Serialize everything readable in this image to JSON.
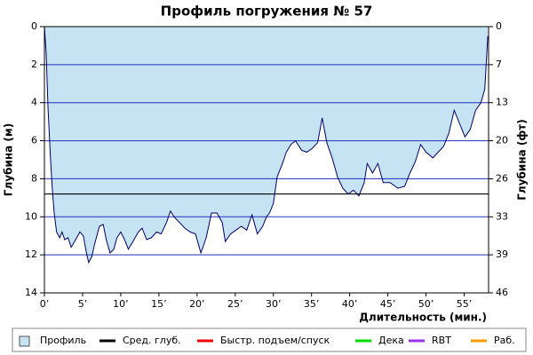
{
  "chart_data": {
    "type": "area",
    "title": "Профиль погружения № 57",
    "y_label": "Глубина (м)",
    "y2_label": "Глубина (фт)",
    "x_label": "Длительность (мин.)",
    "xlim": [
      0,
      58.2
    ],
    "xticks": [
      {
        "value": 0,
        "label": "0’"
      },
      {
        "value": 5,
        "label": "5’"
      },
      {
        "value": 10,
        "label": "10’"
      },
      {
        "value": 15,
        "label": "15’"
      },
      {
        "value": 20,
        "label": "20’"
      },
      {
        "value": 25,
        "label": "25’"
      },
      {
        "value": 30,
        "label": "30’"
      },
      {
        "value": 35,
        "label": "35’"
      },
      {
        "value": 40,
        "label": "40’"
      },
      {
        "value": 45,
        "label": "45’"
      },
      {
        "value": 50,
        "label": "50’"
      },
      {
        "value": 55,
        "label": "55’"
      }
    ],
    "ylim": [
      0,
      14
    ],
    "yticks": [
      0,
      2,
      4,
      6,
      8,
      10,
      12,
      14
    ],
    "y2lim": [
      0,
      45.93
    ],
    "y2ticks": [
      0,
      {
        "value": 6.56,
        "label": "7"
      },
      {
        "value": 13.12,
        "label": "13"
      },
      {
        "value": 19.69,
        "label": "20"
      },
      {
        "value": 26.25,
        "label": "26"
      },
      {
        "value": 32.81,
        "label": "33"
      },
      {
        "value": 39.37,
        "label": "39"
      },
      {
        "value": 45.93,
        "label": "46"
      }
    ],
    "inverted": true,
    "grid": true,
    "grid_color": "#2233bb",
    "profile": {
      "name": "Профиль",
      "color": "#000066",
      "fill": "#c5e3f3",
      "x": [
        0,
        0.23,
        0.47,
        0.8,
        1.05,
        1.28,
        1.6,
        2.0,
        2.3,
        2.67,
        3.1,
        3.5,
        4.1,
        4.65,
        5.1,
        5.5,
        5.8,
        6.2,
        6.6,
        7.2,
        7.7,
        8.1,
        8.6,
        9.1,
        9.5,
        10.0,
        10.5,
        11.0,
        11.6,
        12.3,
        12.8,
        13.4,
        14.0,
        14.7,
        15.3,
        16.0,
        16.5,
        17.0,
        17.7,
        18.4,
        19.1,
        19.8,
        20.5,
        21.2,
        21.9,
        22.6,
        23.3,
        23.7,
        24.4,
        25.1,
        25.8,
        26.5,
        27.2,
        27.9,
        28.6,
        29.1,
        29.5,
        30.0,
        30.5,
        31.2,
        31.7,
        32.3,
        32.9,
        33.7,
        34.4,
        35.1,
        35.8,
        36.4,
        37.0,
        37.7,
        38.4,
        39.1,
        39.8,
        40.5,
        41.2,
        41.9,
        42.3,
        43.0,
        43.7,
        44.4,
        45.3,
        46.3,
        47.2,
        47.9,
        48.6,
        49.3,
        50.0,
        50.9,
        51.6,
        52.3,
        53.0,
        53.7,
        54.4,
        55.1,
        55.8,
        56.5,
        57.2,
        57.7,
        57.9,
        58.1
      ],
      "values": [
        0,
        1.4,
        4.2,
        7,
        8.6,
        9.8,
        10.8,
        11.1,
        10.8,
        11.2,
        11.1,
        11.6,
        11.2,
        10.8,
        11.0,
        11.9,
        12.4,
        12.1,
        11.4,
        10.5,
        10.4,
        11.2,
        11.9,
        11.7,
        11.1,
        10.8,
        11.2,
        11.7,
        11.3,
        10.8,
        10.6,
        11.2,
        11.1,
        10.8,
        10.9,
        10.3,
        9.7,
        10.0,
        10.3,
        10.6,
        10.8,
        10.9,
        11.9,
        11.1,
        9.8,
        9.8,
        10.3,
        11.3,
        10.9,
        10.7,
        10.5,
        10.7,
        9.9,
        10.9,
        10.5,
        10.0,
        9.8,
        9.3,
        7.9,
        7.2,
        6.6,
        6.2,
        6.0,
        6.5,
        6.6,
        6.4,
        6.1,
        4.8,
        6.1,
        6.9,
        7.9,
        8.5,
        8.8,
        8.6,
        8.9,
        8.2,
        7.2,
        7.7,
        7.2,
        8.2,
        8.2,
        8.5,
        8.4,
        7.7,
        7.1,
        6.2,
        6.6,
        6.9,
        6.6,
        6.3,
        5.6,
        4.4,
        5.1,
        5.8,
        5.4,
        4.4,
        4.0,
        3.3,
        1.9,
        0.5
      ]
    },
    "average_depth": 8.8,
    "average_color": "#000000",
    "legend": [
      {
        "label": "Профиль",
        "color": "#c5e3f3",
        "shape": "box"
      },
      {
        "label": "Сред. глуб.",
        "color": "#000000",
        "shape": "line"
      },
      {
        "label": "Быстр. подъем/спуск",
        "color": "#ee0000",
        "shape": "line"
      },
      {
        "label": "Дека",
        "color": "#00dd00",
        "shape": "line"
      },
      {
        "label": "RBT",
        "color": "#9933ee",
        "shape": "line"
      },
      {
        "label": "Раб.",
        "color": "#ff9900",
        "shape": "line"
      }
    ]
  }
}
